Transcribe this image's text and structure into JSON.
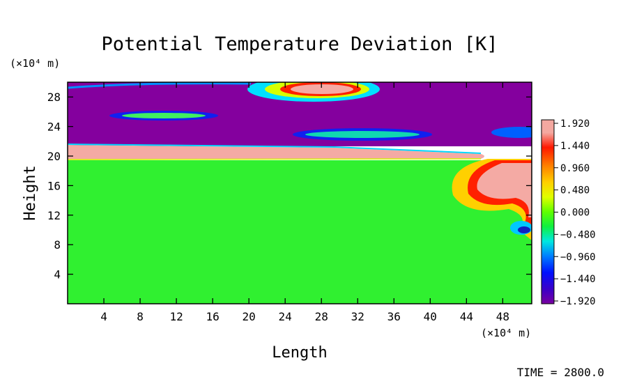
{
  "chart_data": {
    "type": "heatmap",
    "title": "Potential Temperature Deviation [K]",
    "xlabel": "Length",
    "ylabel": "Height",
    "x_unit": "(×10⁴ m)",
    "y_unit": "(×10⁴ m)",
    "xlim": [
      0,
      51.2
    ],
    "ylim": [
      0,
      30
    ],
    "x_ticks": [
      4,
      8,
      12,
      16,
      20,
      24,
      28,
      32,
      36,
      40,
      44,
      48
    ],
    "y_ticks": [
      4,
      8,
      12,
      16,
      20,
      24,
      28
    ],
    "x_tick_labels": [
      "4",
      "8",
      "12",
      "16",
      "20",
      "24",
      "28",
      "32",
      "36",
      "40",
      "44",
      "48"
    ],
    "y_tick_labels": [
      "4",
      "8",
      "12",
      "16",
      "20",
      "24",
      "28"
    ],
    "colorbar": {
      "levels": [
        "1.920",
        "1.440",
        "0.960",
        "0.480",
        "0.000",
        "−0.480",
        "−0.960",
        "−1.440",
        "−1.920"
      ],
      "min": -1.92,
      "max": 1.92,
      "colors": [
        "#7a00a0",
        "#3a00c8",
        "#0010ff",
        "#0080ff",
        "#00e8e0",
        "#10f040",
        "#60ff00",
        "#e0ff00",
        "#ffd000",
        "#ff8000",
        "#ff1800",
        "#f4a8a0"
      ]
    },
    "field": {
      "background_low": 0.0,
      "background_high": -1.92,
      "inversion_layer": {
        "y": 20.8,
        "value": 1.92,
        "x_end": 46
      },
      "features": [
        {
          "x": 26.5,
          "y": 28.8,
          "value": 1.92,
          "rx": 4.5,
          "ry": 1.0
        },
        {
          "x": 10.0,
          "y": 25.3,
          "value": -0.6,
          "rx": 6.5,
          "ry": 0.5
        },
        {
          "x": 31.0,
          "y": 23.0,
          "value": -0.5,
          "rx": 8.0,
          "ry": 0.6
        },
        {
          "x": 48.5,
          "y": 16.5,
          "value": 1.92,
          "rx": 4.0,
          "ry": 3.5
        },
        {
          "x": 50.5,
          "y": 9.5,
          "value": -1.2,
          "rx": 1.0,
          "ry": 0.8
        }
      ]
    },
    "time_label": "TIME = 2800.0"
  }
}
